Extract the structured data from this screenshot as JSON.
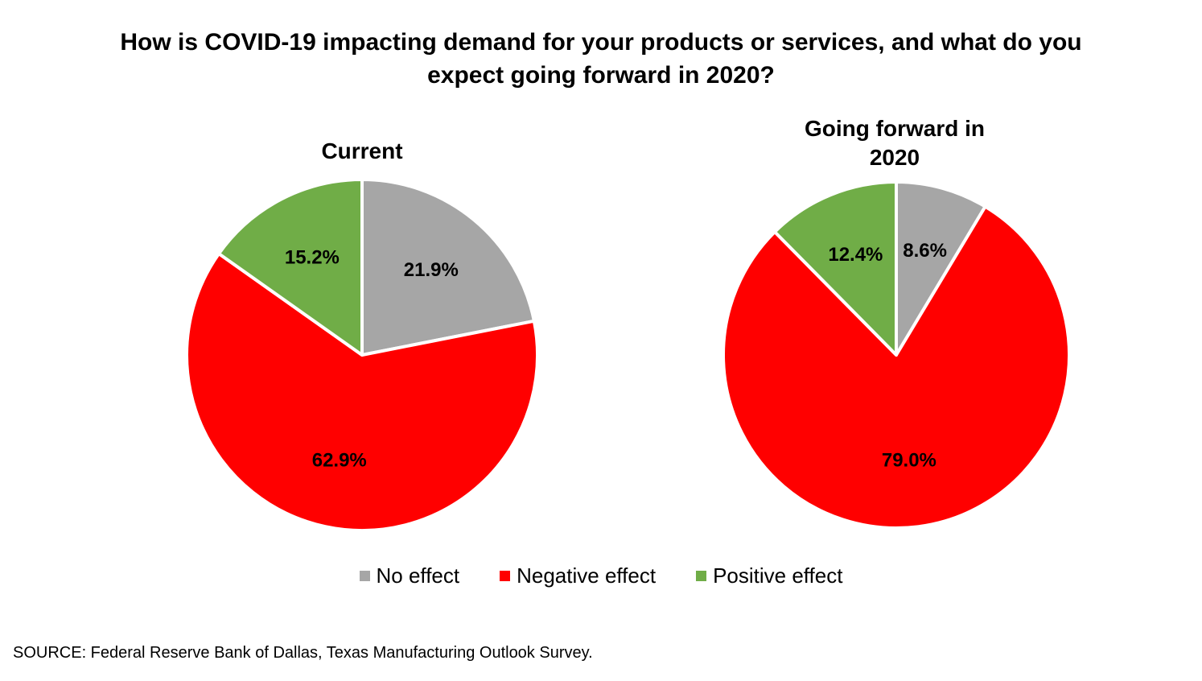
{
  "title_lines": [
    "How is COVID-19 impacting demand for your products or services, and what do you",
    "expect going forward in 2020?"
  ],
  "chart_data": [
    {
      "type": "pie",
      "title": "Current",
      "categories": [
        "No effect",
        "Negative effect",
        "Positive effect"
      ],
      "values": [
        21.9,
        62.9,
        15.2
      ],
      "labels": [
        "21.9%",
        "62.9%",
        "15.2%"
      ]
    },
    {
      "type": "pie",
      "title_lines": [
        "Going forward in",
        "2020"
      ],
      "categories": [
        "No effect",
        "Negative effect",
        "Positive effect"
      ],
      "values": [
        8.6,
        79.0,
        12.4
      ],
      "labels": [
        "8.6%",
        "79.0%",
        "12.4%"
      ]
    }
  ],
  "legend": {
    "placement": "bottom-center",
    "items": [
      {
        "label": "No effect",
        "color": "#A6A6A6"
      },
      {
        "label": "Negative effect",
        "color": "#FF0000"
      },
      {
        "label": "Positive effect",
        "color": "#70AD47"
      }
    ]
  },
  "source": "SOURCE: Federal Reserve Bank of Dallas, Texas Manufacturing Outlook Survey."
}
